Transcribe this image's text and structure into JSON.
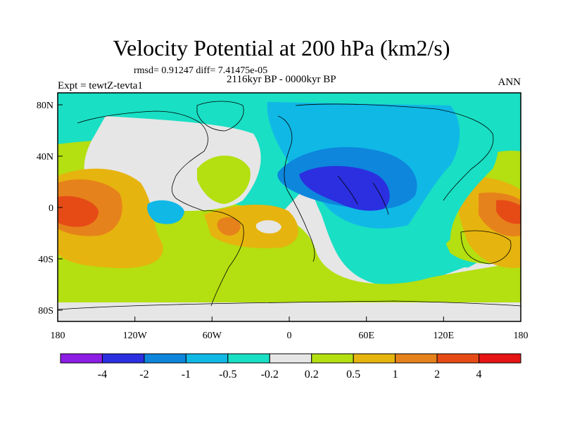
{
  "title": "Velocity Potential at 200 hPa (km2/s)",
  "stats": "rmsd= 0.91247 diff= 7.41475e-05",
  "period": "2116kyr BP - 0000kyr BP",
  "experiment": "Expt = tewtZ-tevta1",
  "season": "ANN",
  "lon_ticks": [
    "180",
    "120W",
    "60W",
    "0",
    "60E",
    "120E",
    "180"
  ],
  "lat_ticks": [
    "80N",
    "40N",
    "0",
    "40S",
    "80S"
  ],
  "colorbar": {
    "labels": [
      "-4",
      "-2",
      "-1",
      "-0.5",
      "-0.2",
      "0.2",
      "0.5",
      "1",
      "2",
      "4"
    ],
    "colors": [
      "#8c1ee6",
      "#2b2fe0",
      "#0d86dc",
      "#10b8e6",
      "#19dfc4",
      "#e6e6e6",
      "#b4df10",
      "#e6b40e",
      "#e6821b",
      "#e64b16",
      "#e61414"
    ]
  },
  "palette": {
    "ocean_bg": "#19dfc4",
    "land_line": "#000000"
  }
}
